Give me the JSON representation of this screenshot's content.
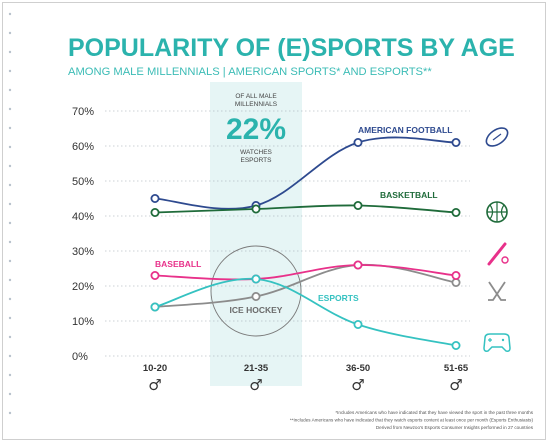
{
  "chart_data": {
    "type": "line",
    "title": "POPULARITY OF (E)SPORTS BY AGE",
    "subtitle": "AMONG MALE MILLENNIALS | AMERICAN SPORTS* AND ESPORTS**",
    "categories": [
      "10-20",
      "21-35",
      "36-50",
      "51-65"
    ],
    "yticks": [
      "0%",
      "10%",
      "20%",
      "30%",
      "40%",
      "50%",
      "60%",
      "70%"
    ],
    "ylim": [
      0,
      70
    ],
    "grid": true,
    "series": [
      {
        "name": "AMERICAN FOOTBALL",
        "values": [
          45,
          43,
          61,
          61
        ],
        "color": "#2e4a8f",
        "icon": "american-football-icon"
      },
      {
        "name": "BASKETBALL",
        "values": [
          41,
          42,
          43,
          41
        ],
        "color": "#1f6b3a",
        "icon": "basketball-icon"
      },
      {
        "name": "BASEBALL",
        "values": [
          23,
          22,
          26,
          23
        ],
        "color": "#e8318a",
        "icon": "baseball-bat-icon"
      },
      {
        "name": "ICE HOCKEY",
        "values": [
          14,
          17,
          26,
          21
        ],
        "color": "#8c8c8c",
        "icon": "hockey-sticks-icon"
      },
      {
        "name": "ESPORTS",
        "values": [
          14,
          22,
          9,
          3
        ],
        "color": "#35c2c1",
        "icon": "gamepad-icon"
      }
    ],
    "highlight": {
      "category": "21-35",
      "line1": "OF ALL MALE",
      "line2": "MILLENNIALS",
      "value": "22%",
      "line3": "WATCHES",
      "line4": "ESPORTS",
      "color": "#e6f5f5"
    },
    "axis_symbol": "♂",
    "footnotes": [
      "*Includes Americans who have indicated that they have viewed the sport in the past three months",
      "**Includes Americans who have indicated that they watch esports content at least once per month (Esports Enthusiasts)",
      "Derived from Newzoo's Esports Consumer Insights performed in 27 countries"
    ],
    "title_color": "#2bb3ad",
    "subtitle_color": "#3cbcb6"
  }
}
